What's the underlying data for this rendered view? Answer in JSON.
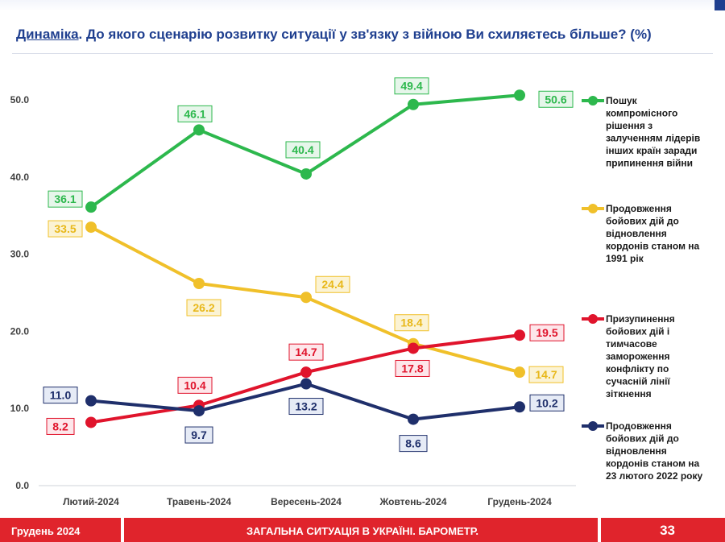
{
  "header": {
    "title_highlight": "Динаміка",
    "title_rest": ". До якого сценарію розвитку ситуації у зв'язку з війною Ви схиляєтесь більше? (%)"
  },
  "footer": {
    "left": "Грудень 2024",
    "center": "ЗАГАЛЬНА СИТУАЦІЯ В УКРАЇНІ. БАРОМЕТР.",
    "page": "33"
  },
  "colors": {
    "green": "#2db84d",
    "yellow": "#f0c02a",
    "red": "#e0142c",
    "navy": "#1f2f6b",
    "accent": "#1f3f8f",
    "footer": "#e0242c"
  },
  "chart_data": {
    "type": "line",
    "categories": [
      "Лютий-2024",
      "Травень-2024",
      "Вересень-2024",
      "Жовтень-2024",
      "Грудень-2024"
    ],
    "ylim": [
      0,
      50
    ],
    "yticks": [
      "0.0",
      "10.0",
      "20.0",
      "30.0",
      "40.0",
      "50.0"
    ],
    "grid": false,
    "legend_position": "right",
    "series": [
      {
        "name": "Пошук компромісного рішення з залученням лідерів інших країн заради припинення війни",
        "legend_lines": [
          "Пошук",
          "компромісного",
          "рішення з",
          "залученням лідерів",
          "інших країн заради",
          "припинення війни"
        ],
        "color": "#2db84d",
        "values": [
          36.1,
          46.1,
          40.4,
          49.4,
          50.6
        ],
        "labels": [
          "36.1",
          "46.1",
          "40.4",
          "49.4",
          "50.6"
        ]
      },
      {
        "name": "Продовження бойових дій до відновлення кордонів станом на 1991 рік",
        "legend_lines": [
          "Продовження",
          "бойових дій до",
          "відновлення",
          "кордонів станом на",
          "1991 рік"
        ],
        "color": "#f0c02a",
        "values": [
          33.5,
          26.2,
          24.4,
          18.4,
          14.7
        ],
        "labels": [
          "33.5",
          "26.2",
          "24.4",
          "18.4",
          "14.7"
        ]
      },
      {
        "name": "Призупинення бойових дій і тимчасове замороження конфлікту по сучасній лінії зіткнення",
        "legend_lines": [
          "Призупинення",
          "бойових дій і",
          "тимчасове",
          "замороження",
          "конфлікту по",
          "сучасній лінії",
          "зіткнення"
        ],
        "color": "#e0142c",
        "values": [
          8.2,
          10.4,
          14.7,
          17.8,
          19.5
        ],
        "labels": [
          "8.2",
          "10.4",
          "14.7",
          "17.8",
          "19.5"
        ]
      },
      {
        "name": "Продовження бойових дій до відновлення кордонів станом на 23 лютого 2022 року",
        "legend_lines": [
          "Продовження",
          "бойових дій до",
          "відновлення",
          "кордонів станом на",
          "23 лютого 2022 року"
        ],
        "color": "#1f2f6b",
        "values": [
          11.0,
          9.7,
          13.2,
          8.6,
          10.2
        ],
        "labels": [
          "11.0",
          "9.7",
          "13.2",
          "8.6",
          "10.2"
        ]
      }
    ]
  }
}
